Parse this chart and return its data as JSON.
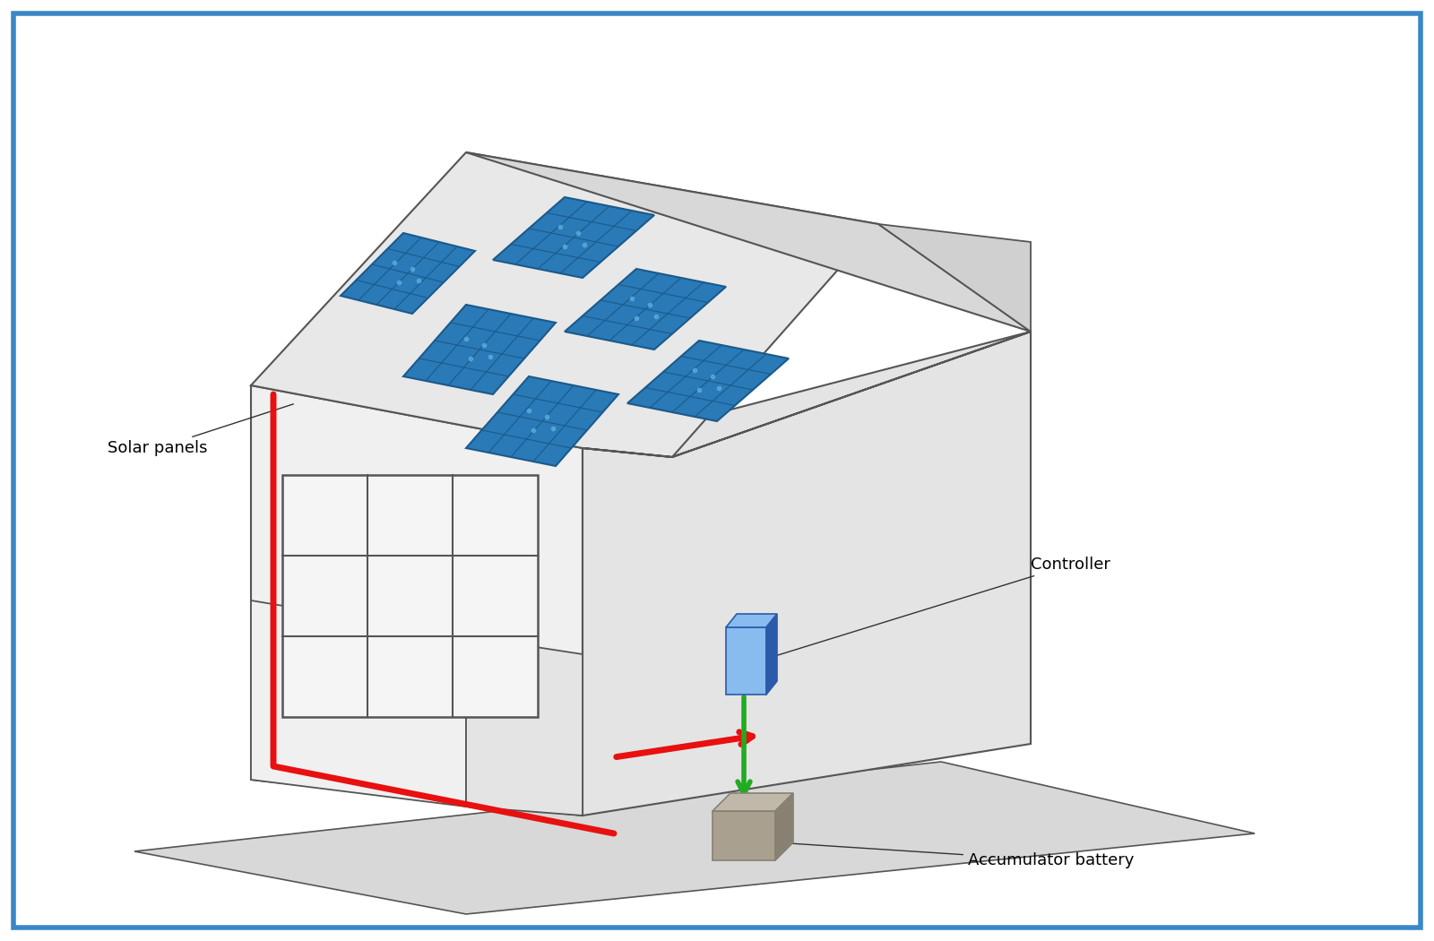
{
  "bg_color": "#ffffff",
  "border_color": "#3a87c8",
  "border_linewidth": 4,
  "label_solar": "Solar panels",
  "label_controller": "Controller",
  "label_battery": "Accumulator battery",
  "label_fontsize": 13,
  "house_outline_color": "#555555",
  "house_fill_color": "#f0f0f0",
  "roof_fill_color": "#e8e8e8",
  "solar_panel_color": "#2a7ab8",
  "solar_panel_grid_color": "#1a5a8a",
  "solar_panel_light_color": "#5aabdd",
  "red_wire_color": "#e81010",
  "green_arrow_color": "#22aa22",
  "controller_blue_dark": "#2a5aaa",
  "controller_blue_light": "#88bbee",
  "battery_color": "#aaa090",
  "battery_dark": "#888070",
  "wire_linewidth": 5,
  "annotation_line_color": "#333333"
}
